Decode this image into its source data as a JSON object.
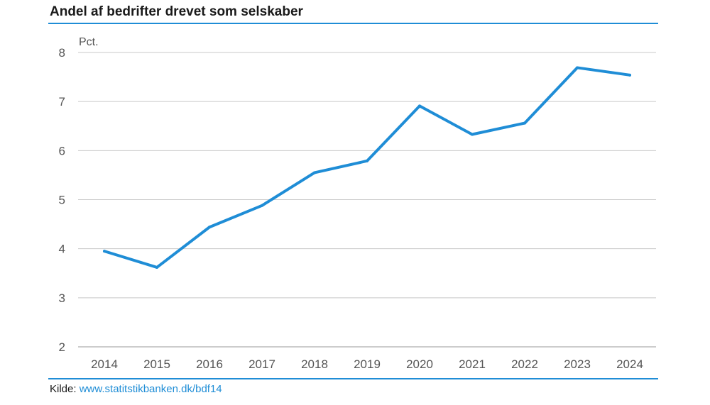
{
  "header": {
    "title": "Andel af bedrifter drevet som selskaber"
  },
  "footer": {
    "source_label": "Kilde: ",
    "source_link": "www.statitstikbanken.dk/bdf14"
  },
  "colors": {
    "line": "#1f8dd6",
    "rule": "#1f8dd6",
    "grid": "#c8c8c8"
  },
  "chart_data": {
    "type": "line",
    "title": "Andel af bedrifter drevet som selskaber",
    "ylabel": "Pct.",
    "xlabel": "",
    "categories": [
      "2014",
      "2015",
      "2016",
      "2017",
      "2018",
      "2019",
      "2020",
      "2021",
      "2022",
      "2023",
      "2024"
    ],
    "series": [
      {
        "values": [
          3.95,
          3.62,
          4.44,
          4.88,
          5.55,
          5.79,
          6.91,
          6.33,
          6.56,
          7.69,
          7.54
        ]
      }
    ],
    "ylim": [
      2,
      8
    ],
    "yticks": [
      "2",
      "3",
      "4",
      "5",
      "6",
      "7",
      "8"
    ],
    "grid": true,
    "legend": "none"
  }
}
